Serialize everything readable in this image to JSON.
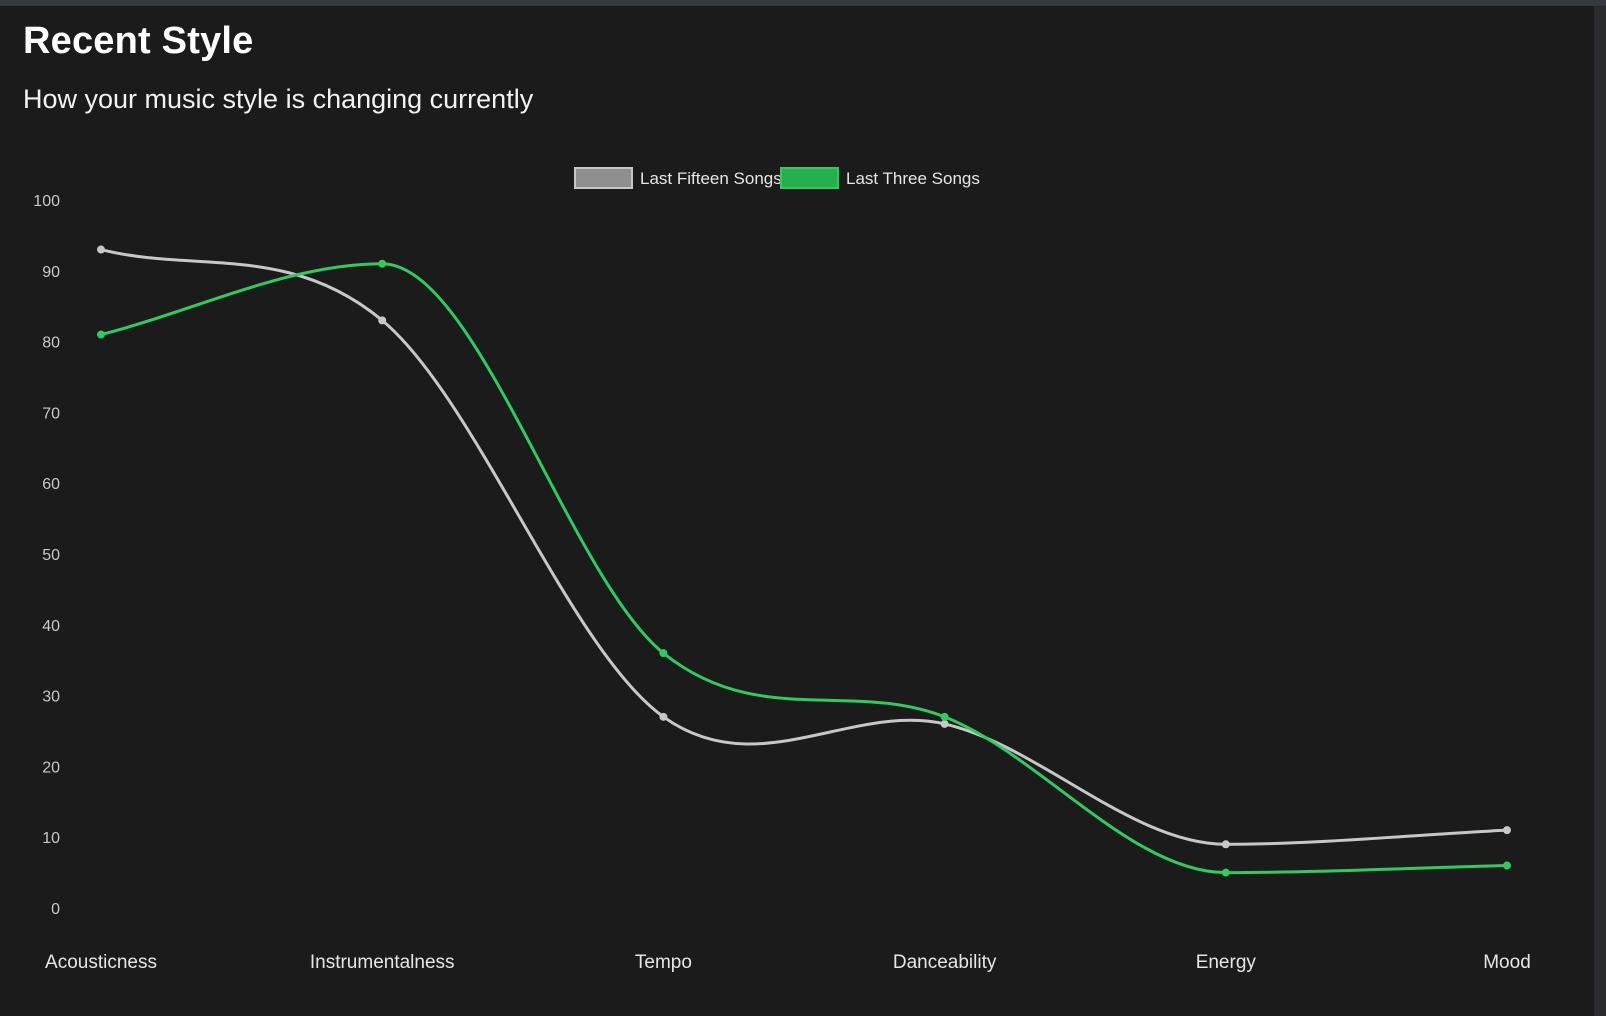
{
  "header": {
    "title": "Recent Style",
    "subtitle": "How your music style is changing currently"
  },
  "colors": {
    "background": "#1b1b1b",
    "fifteen": "#c7c7c7",
    "three": "#2ecc5f",
    "tick_text": "#c8c8c8"
  },
  "chart_data": {
    "type": "line",
    "categories": [
      "Acousticness",
      "Instrumentalness",
      "Tempo",
      "Danceability",
      "Energy",
      "Mood"
    ],
    "ylim": [
      0,
      100
    ],
    "yticks": [
      0,
      10,
      20,
      30,
      40,
      50,
      60,
      70,
      80,
      90,
      100
    ],
    "grid": false,
    "legend_position": "top-center",
    "series": [
      {
        "name": "Last Fifteen Songs",
        "values": [
          93,
          83,
          27,
          26,
          9,
          11
        ],
        "color": "#c7c7c7"
      },
      {
        "name": "Last Three Songs",
        "values": [
          81,
          91,
          36,
          27,
          5,
          6
        ],
        "color": "#2ecc5f"
      }
    ]
  }
}
